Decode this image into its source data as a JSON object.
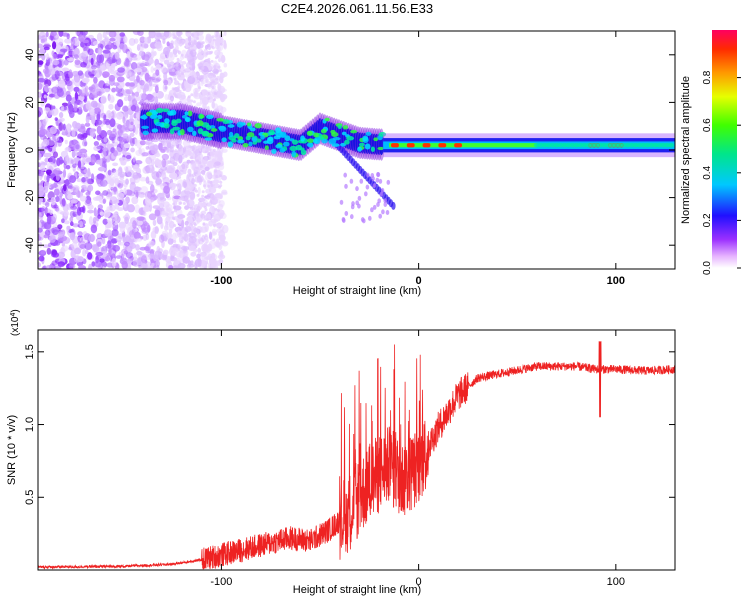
{
  "title": "C2E4.2026.061.11.56.E33",
  "chart_data": [
    {
      "type": "heatmap",
      "name": "spectrogram",
      "xlabel": "Height of straight line (km)",
      "ylabel": "Frequency (Hz)",
      "xlim": [
        -193,
        130
      ],
      "ylim": [
        -50,
        50
      ],
      "xticks": [
        -100,
        0,
        100
      ],
      "yticks": [
        -40,
        -20,
        0,
        20,
        40
      ],
      "colorbar": {
        "label": "Normalized spectral amplitude",
        "range": [
          0,
          1
        ],
        "ticks": [
          0.0,
          0.2,
          0.4,
          0.6,
          0.8
        ]
      },
      "ridge": [
        {
          "x": -140,
          "y": 12
        },
        {
          "x": -120,
          "y": 12
        },
        {
          "x": -100,
          "y": 8
        },
        {
          "x": -80,
          "y": 5
        },
        {
          "x": -60,
          "y": 2
        },
        {
          "x": -50,
          "y": 9
        },
        {
          "x": -40,
          "y": 6
        },
        {
          "x": -30,
          "y": 3
        },
        {
          "x": -15,
          "y": 2
        },
        {
          "x": 0,
          "y": 2
        },
        {
          "x": 50,
          "y": 2
        },
        {
          "x": 100,
          "y": 2
        },
        {
          "x": 130,
          "y": 2
        }
      ]
    },
    {
      "type": "line",
      "name": "snr",
      "xlabel": "Height of straight line (km)",
      "ylabel": "SNR (10 * v/v)",
      "yscale_label": "(x10",
      "yscale_exp": "4",
      "yscale_close": ")",
      "xlim": [
        -193,
        130
      ],
      "ylim": [
        0,
        1.65
      ],
      "xticks": [
        -100,
        0,
        100
      ],
      "yticks": [
        0.5,
        1.0,
        1.5
      ],
      "ytick_labels": [
        "0.5",
        "1.0",
        "1.5"
      ],
      "color": "#ee2222",
      "series": [
        {
          "x": -193,
          "y": 0.02
        },
        {
          "x": -150,
          "y": 0.025
        },
        {
          "x": -125,
          "y": 0.04
        },
        {
          "x": -110,
          "y": 0.07
        },
        {
          "x": -95,
          "y": 0.12
        },
        {
          "x": -80,
          "y": 0.17
        },
        {
          "x": -65,
          "y": 0.22
        },
        {
          "x": -55,
          "y": 0.2
        },
        {
          "x": -45,
          "y": 0.28
        },
        {
          "x": -35,
          "y": 0.4
        },
        {
          "x": -25,
          "y": 0.6
        },
        {
          "x": -15,
          "y": 0.72
        },
        {
          "x": -8,
          "y": 0.62
        },
        {
          "x": 0,
          "y": 0.72
        },
        {
          "x": 10,
          "y": 0.98
        },
        {
          "x": 20,
          "y": 1.2
        },
        {
          "x": 30,
          "y": 1.32
        },
        {
          "x": 45,
          "y": 1.36
        },
        {
          "x": 60,
          "y": 1.4
        },
        {
          "x": 80,
          "y": 1.4
        },
        {
          "x": 90,
          "y": 1.38
        },
        {
          "x": 100,
          "y": 1.38
        },
        {
          "x": 115,
          "y": 1.37
        },
        {
          "x": 130,
          "y": 1.38
        }
      ],
      "annotations": [
        {
          "x": 92,
          "y": 1.05,
          "note": "dip"
        },
        {
          "x": 92,
          "y": 1.57,
          "note": "spike"
        }
      ]
    }
  ]
}
